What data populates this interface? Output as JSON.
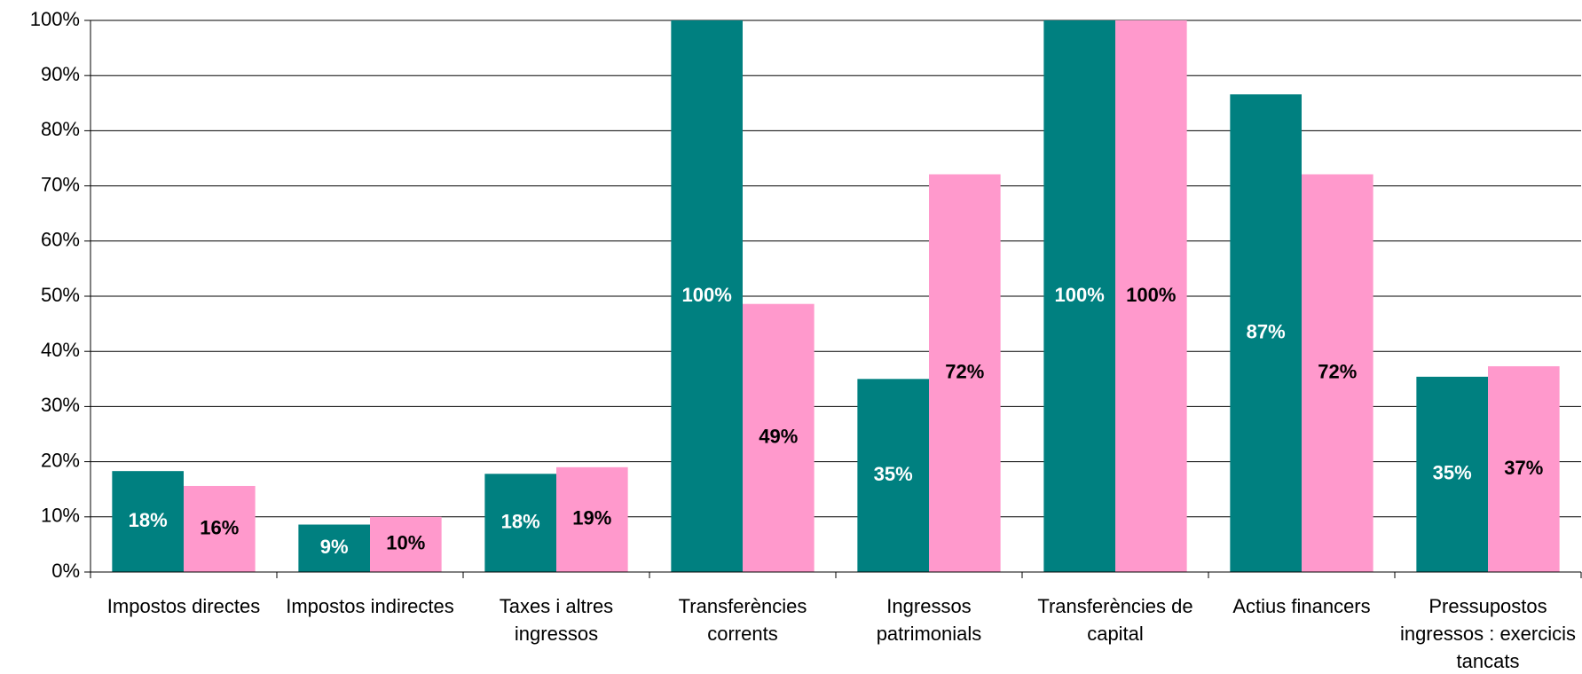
{
  "chart_data": {
    "type": "bar",
    "categories": [
      "Impostos directes",
      "Impostos indirectes",
      "Taxes i altres ingressos",
      "Transferències corrents",
      "Ingressos patrimonials",
      "Transferències de capital",
      "Actius financers",
      "Pressupostos ingressos : exercicis tancats"
    ],
    "series": [
      {
        "color": "#008080",
        "label_color": "#ffffff",
        "values": [
          18.3,
          8.6,
          17.8,
          100,
          35,
          100,
          86.6,
          35.4
        ],
        "value_labels": [
          "18%",
          "9%",
          "18%",
          "100%",
          "35%",
          "100%",
          "87%",
          "35%"
        ]
      },
      {
        "color": "#ff99cc",
        "label_color": "#000000",
        "values": [
          15.6,
          10,
          19,
          48.6,
          72.1,
          100,
          72.1,
          37.3
        ],
        "value_labels": [
          "16%",
          "10%",
          "19%",
          "49%",
          "72%",
          "100%",
          "72%",
          "37%"
        ]
      }
    ],
    "ylim": [
      0,
      100
    ],
    "yticks": [
      {
        "value": 0,
        "label": "0%"
      },
      {
        "value": 10,
        "label": "10%"
      },
      {
        "value": 20,
        "label": "20%"
      },
      {
        "value": 30,
        "label": "30%"
      },
      {
        "value": 40,
        "label": "40%"
      },
      {
        "value": 50,
        "label": "50%"
      },
      {
        "value": 60,
        "label": "60%"
      },
      {
        "value": 70,
        "label": "70%"
      },
      {
        "value": 80,
        "label": "80%"
      },
      {
        "value": 90,
        "label": "90%"
      },
      {
        "value": 100,
        "label": "100%"
      }
    ],
    "grid": true
  }
}
